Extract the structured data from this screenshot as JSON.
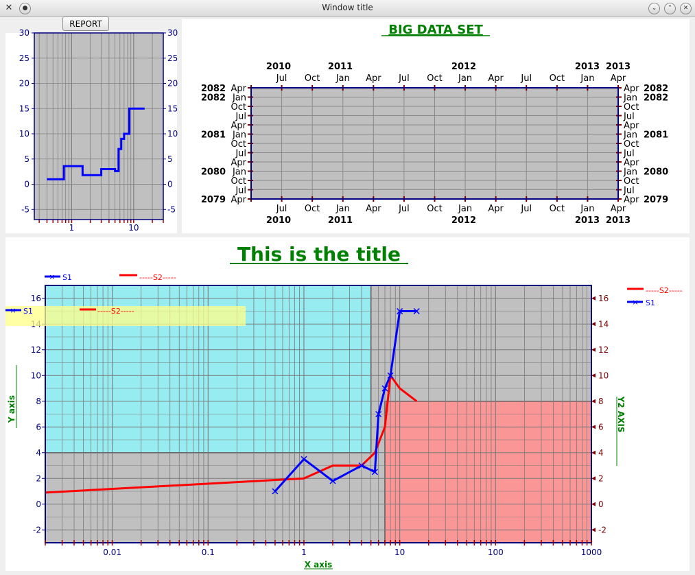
{
  "window": {
    "title": "Window title"
  },
  "toolbar": {
    "report_label": "REPORT"
  },
  "small_chart": {
    "y_ticks": [
      "30",
      "25",
      "20",
      "15",
      "10",
      "5",
      "0",
      "-5"
    ],
    "x_ticks": [
      "1",
      "10"
    ],
    "chart_data": {
      "type": "line",
      "scale_x": "log",
      "xlim": [
        0.25,
        30
      ],
      "ylim": [
        -7,
        30
      ],
      "grid": true,
      "line_color": "#0000ff",
      "background": "#c0c0c0",
      "series": [
        {
          "x": [
            0.4,
            0.75,
            0.75,
            1.5,
            1.5,
            3,
            3,
            5,
            5,
            5.7,
            5.7,
            6.3,
            6.3,
            7,
            7,
            8.5,
            8.5,
            15
          ],
          "y": [
            1,
            1,
            3.6,
            3.6,
            1.8,
            1.8,
            3,
            3,
            2.6,
            2.6,
            7,
            7,
            9,
            9,
            10,
            10,
            15,
            15
          ]
        }
      ]
    }
  },
  "date_chart": {
    "title": "BIG DATA SET",
    "top_years": [
      {
        "x": 406,
        "t": "2010"
      },
      {
        "x": 496,
        "t": "2011"
      },
      {
        "x": 676,
        "t": "2012"
      },
      {
        "x": 856,
        "t": "2013"
      },
      {
        "x": 901,
        "t": "2013"
      }
    ],
    "top_months": [
      "Jul",
      "Oct",
      "Jan",
      "Apr",
      "Jul",
      "Oct",
      "Jan",
      "Apr",
      "Jul",
      "Oct",
      "Jan",
      "Apr"
    ],
    "bottom_years": [
      {
        "x": 406,
        "t": "2010"
      },
      {
        "x": 496,
        "t": "2011"
      },
      {
        "x": 676,
        "t": "2012"
      },
      {
        "x": 856,
        "t": "2013"
      },
      {
        "x": 901,
        "t": "2013"
      }
    ],
    "left_labels": [
      {
        "m": "Apr",
        "y": "2082"
      },
      {
        "m": "Jan",
        "y": "2082"
      },
      {
        "m": "Oct",
        "y": ""
      },
      {
        "m": "Jul",
        "y": ""
      },
      {
        "m": "Apr",
        "y": ""
      },
      {
        "m": "Jan",
        "y": "2081"
      },
      {
        "m": "Oct",
        "y": ""
      },
      {
        "m": "Jul",
        "y": ""
      },
      {
        "m": "Apr",
        "y": ""
      },
      {
        "m": "Jan",
        "y": "2080"
      },
      {
        "m": "Oct",
        "y": ""
      },
      {
        "m": "Jul",
        "y": ""
      },
      {
        "m": "Apr",
        "y": "2079"
      }
    ],
    "chart_data": {
      "type": "line",
      "x_axis": "dates Apr 2010 – Apr 2013",
      "y_axis": "dates Apr 2079 – Apr 2082",
      "series": []
    }
  },
  "main_chart": {
    "title": "This is the title",
    "xlabel": "X axis",
    "ylabel": "Y axis",
    "y2label": "Y2 AXIS",
    "y_ticks": [
      "16",
      "14",
      "12",
      "10",
      "8",
      "6",
      "4",
      "2",
      "0",
      "-2"
    ],
    "y2_ticks": [
      "16",
      "14",
      "12",
      "10",
      "8",
      "6",
      "4",
      "2",
      "0",
      "-2"
    ],
    "x_ticks": [
      "0.01",
      "0.1",
      "1",
      "10",
      "100",
      "1000"
    ],
    "legends": {
      "top": {
        "s1": "S1",
        "s2": "-----S2-----"
      },
      "inner": {
        "s1": "S1",
        "s2": "-----S2-----"
      },
      "right": {
        "s2": "-----S2-----",
        "s1": "S1"
      }
    },
    "colors": {
      "s1": "#0000ff",
      "s2": "#ff0000",
      "cyan_region": "#96ecf0",
      "red_region": "#fa9696",
      "plot_bg": "#c0c0c0",
      "title": "#008000"
    },
    "chart_data": {
      "type": "line",
      "scale_x": "log",
      "xlim": [
        0.002,
        1000
      ],
      "ylim": [
        -3,
        17
      ],
      "grid": true,
      "series": [
        {
          "name": "S1",
          "marker": "x",
          "x": [
            0.5,
            1,
            2,
            4,
            5.5,
            6,
            7,
            8,
            10,
            15
          ],
          "y": [
            1,
            3.5,
            1.8,
            3,
            2.5,
            7,
            9,
            10,
            15,
            15
          ]
        },
        {
          "name": "-----S2-----",
          "x": [
            0.002,
            1,
            2,
            4,
            5.5,
            7,
            8,
            10,
            15
          ],
          "y": [
            0.9,
            2,
            3,
            3,
            4,
            6,
            10,
            9,
            8
          ]
        }
      ]
    }
  }
}
